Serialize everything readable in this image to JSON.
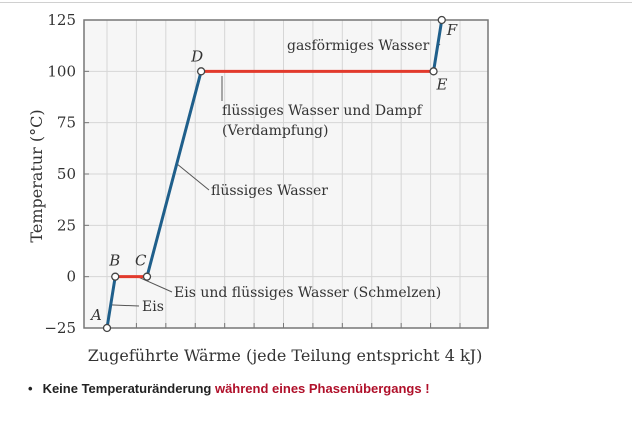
{
  "chart_data": {
    "type": "line",
    "xlabel": "Zugeführte Wärme (jede Teilung entspricht 4 kJ)",
    "ylabel": "Temperatur (°C)",
    "ylim": [
      -25,
      125
    ],
    "xlim": [
      0,
      12
    ],
    "yticks": [
      -25,
      0,
      25,
      50,
      75,
      100,
      125
    ],
    "grid": true,
    "points": [
      {
        "label": "A",
        "x": 0,
        "y": -25
      },
      {
        "label": "B",
        "x": 0.28,
        "y": 0
      },
      {
        "label": "C",
        "x": 1.36,
        "y": 0
      },
      {
        "label": "D",
        "x": 3.2,
        "y": 100
      },
      {
        "label": "E",
        "x": 11.1,
        "y": 100
      },
      {
        "label": "F",
        "x": 11.38,
        "y": 125
      }
    ],
    "segments": [
      {
        "from": "A",
        "to": "B",
        "phase": "Eis",
        "color": "#1f5f8b"
      },
      {
        "from": "B",
        "to": "C",
        "phase": "Eis und flüssiges Wasser (Schmelzen)",
        "color": "#e23a2c"
      },
      {
        "from": "C",
        "to": "D",
        "phase": "flüssiges Wasser",
        "color": "#1f5f8b"
      },
      {
        "from": "D",
        "to": "E",
        "phase": "flüssiges Wasser und Dampf (Verdampfung)",
        "color": "#e23a2c"
      },
      {
        "from": "E",
        "to": "F",
        "phase": "gasförmiges Wasser",
        "color": "#1f5f8b"
      }
    ],
    "annotations": {
      "eis": "Eis",
      "schmelzen": "Eis und flüssiges Wasser (Schmelzen)",
      "fluessig": "flüssiges Wasser",
      "verdampfung_1": "flüssiges Wasser und Dampf",
      "verdampfung_2": "(Verdampfung)",
      "gas": "gasförmiges Wasser"
    }
  },
  "note": {
    "bullet": "•",
    "text_plain": "Keine Temperaturänderung ",
    "text_red": "während eines Phasenübergangs !"
  },
  "colors": {
    "phase_line": "#1f5f8b",
    "transition_line": "#e23a2c",
    "highlight_text": "#b0102a"
  }
}
